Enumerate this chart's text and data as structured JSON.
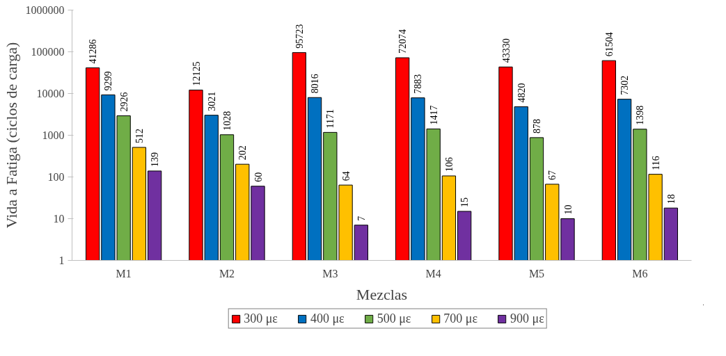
{
  "chart_data": {
    "type": "bar",
    "xlabel": "Mezclas",
    "ylabel": "Vida a Fatiga (ciclos de carga)",
    "categories": [
      "M1",
      "M2",
      "M3",
      "M4",
      "M5",
      "M6"
    ],
    "series": [
      {
        "name": "300 με",
        "color": "#ff0000",
        "values": [
          41286,
          12125,
          95723,
          72074,
          43330,
          61504
        ]
      },
      {
        "name": "400 με",
        "color": "#0070c0",
        "values": [
          9299,
          3021,
          8016,
          7883,
          4820,
          7302
        ]
      },
      {
        "name": "500 με",
        "color": "#70ad47",
        "values": [
          2926,
          1028,
          1171,
          1417,
          878,
          1398
        ]
      },
      {
        "name": "700 με",
        "color": "#ffc000",
        "values": [
          512,
          202,
          64,
          106,
          67,
          116
        ]
      },
      {
        "name": "900 με",
        "color": "#7030a0",
        "values": [
          139,
          60,
          7,
          15,
          10,
          18
        ]
      }
    ],
    "log": true,
    "ylim": [
      1,
      1000000
    ],
    "yticks": [
      1,
      10,
      100,
      1000,
      10000,
      100000,
      1000000
    ],
    "grid": false,
    "legend": "bottom",
    "data_labels": true
  }
}
